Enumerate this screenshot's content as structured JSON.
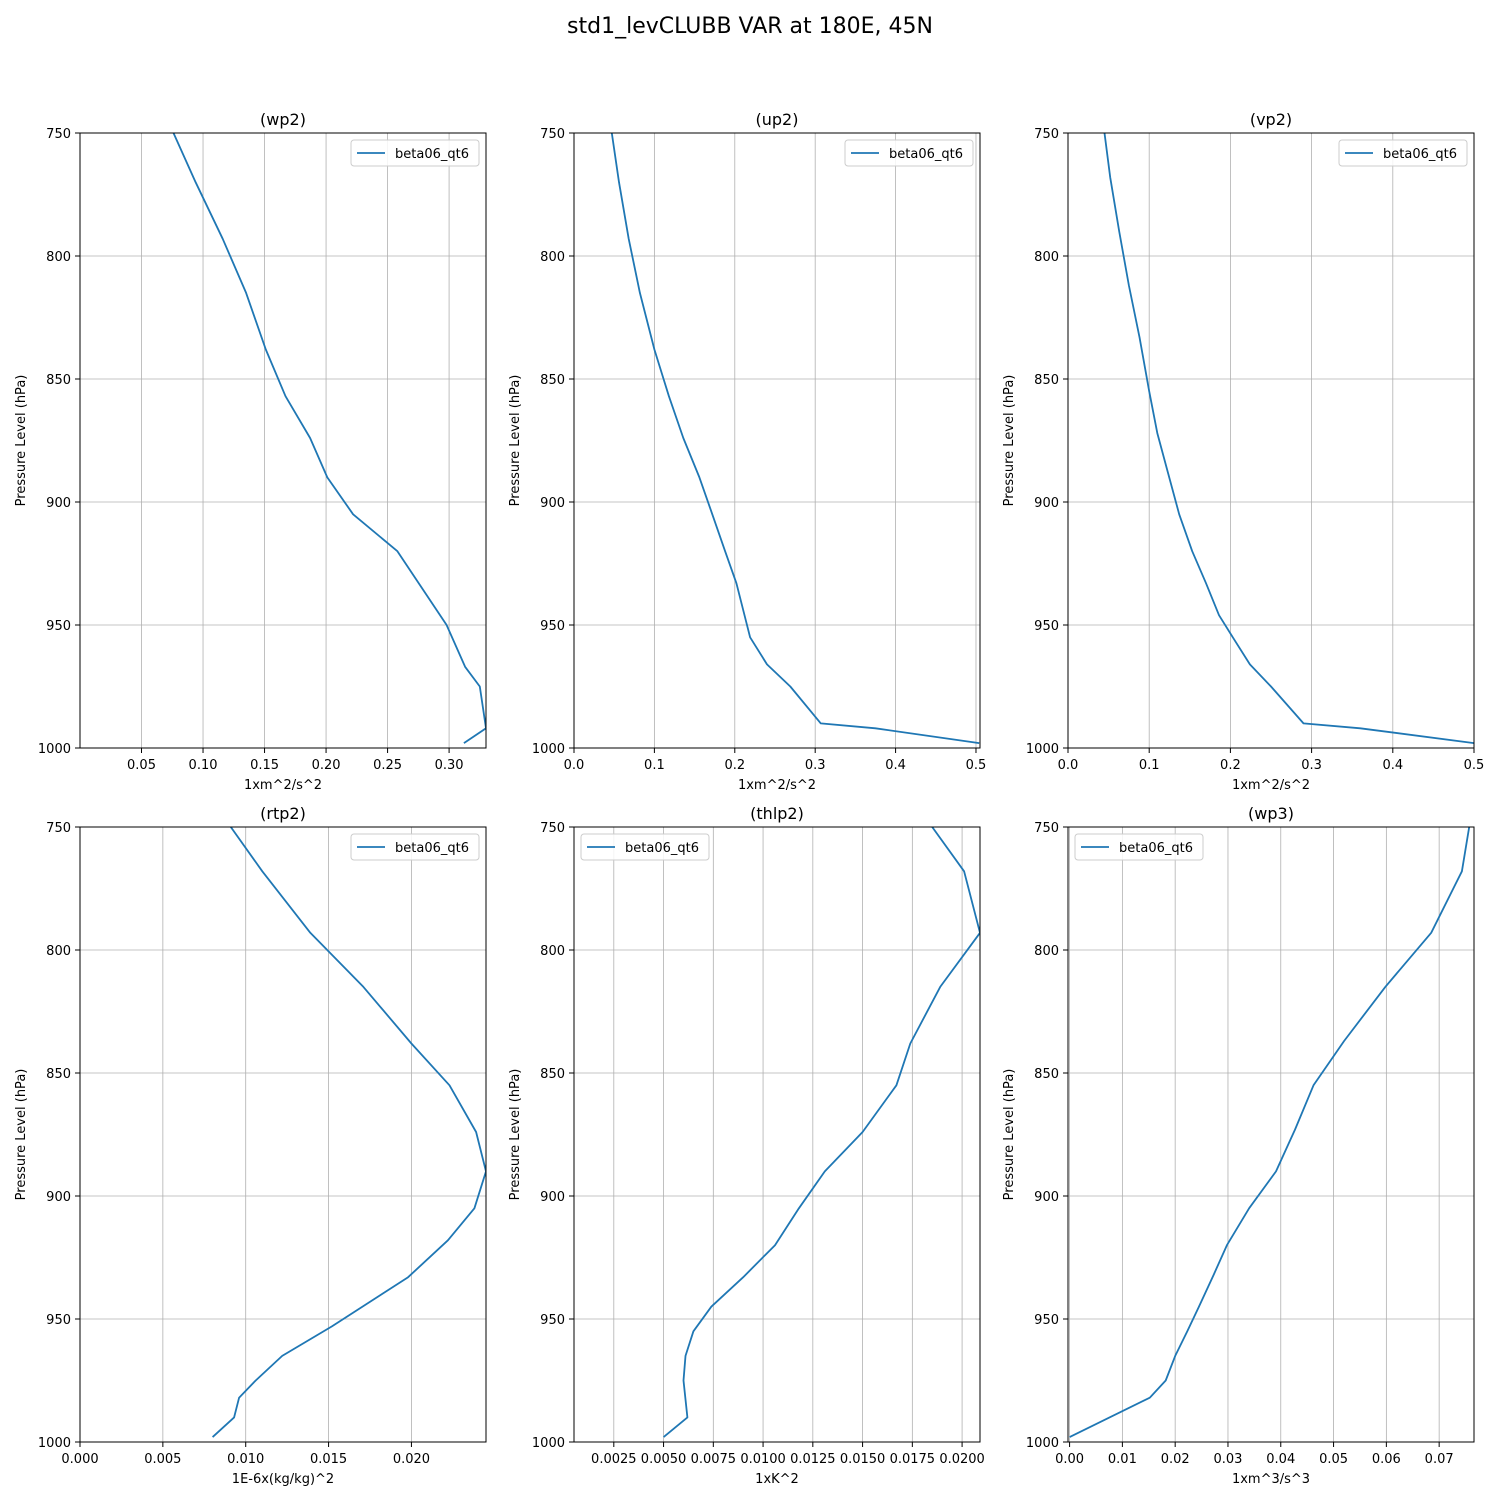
{
  "figure": {
    "title": "std1_levCLUBB VAR at 180E, 45N"
  },
  "chart_data": [
    {
      "type": "line",
      "title": "(wp2)",
      "xlabel": "1xm^2/s^2",
      "ylabel": "Pressure Level (hPa)",
      "xlim": [
        0.0,
        0.33
      ],
      "ylim": [
        1000,
        750
      ],
      "xticks": [
        0.05,
        0.1,
        0.15,
        0.2,
        0.25,
        0.3
      ],
      "xtick_labels": [
        "0.05",
        "0.10",
        "0.15",
        "0.20",
        "0.25",
        "0.30"
      ],
      "yticks": [
        750,
        800,
        850,
        900,
        950,
        1000
      ],
      "ytick_labels": [
        "750",
        "800",
        "850",
        "900",
        "950",
        "1000"
      ],
      "grid": true,
      "legend": "top-right",
      "series": [
        {
          "name": "beta06_qt6",
          "color": "#1f77b4",
          "x": [
            0.076,
            0.094,
            0.116,
            0.135,
            0.151,
            0.167,
            0.187,
            0.201,
            0.222,
            0.258,
            0.298,
            0.313,
            0.325,
            0.33,
            0.312
          ],
          "y": [
            750,
            770,
            793,
            815,
            838,
            857,
            874,
            890,
            905,
            920,
            950,
            967,
            975,
            992,
            998
          ]
        }
      ]
    },
    {
      "type": "line",
      "title": "(up2)",
      "xlabel": "1xm^2/s^2",
      "ylabel": "Pressure Level (hPa)",
      "xlim": [
        0.0,
        0.505
      ],
      "ylim": [
        1000,
        750
      ],
      "xticks": [
        0.0,
        0.1,
        0.2,
        0.3,
        0.4,
        0.5
      ],
      "xtick_labels": [
        "0.0",
        "0.1",
        "0.2",
        "0.3",
        "0.4",
        "0.5"
      ],
      "yticks": [
        750,
        800,
        850,
        900,
        950,
        1000
      ],
      "ytick_labels": [
        "750",
        "800",
        "850",
        "900",
        "950",
        "1000"
      ],
      "grid": true,
      "legend": "top-right",
      "series": [
        {
          "name": "beta06_qt6",
          "color": "#1f77b4",
          "x": [
            0.047,
            0.056,
            0.068,
            0.082,
            0.1,
            0.118,
            0.136,
            0.156,
            0.172,
            0.188,
            0.202,
            0.219,
            0.24,
            0.269,
            0.307,
            0.375,
            0.504
          ],
          "y": [
            750,
            770,
            793,
            815,
            838,
            857,
            874,
            890,
            905,
            920,
            933,
            955,
            966,
            975,
            990,
            992,
            998
          ]
        }
      ]
    },
    {
      "type": "line",
      "title": "(vp2)",
      "xlabel": "1xm^2/s^2",
      "ylabel": "Pressure Level (hPa)",
      "xlim": [
        0.0,
        0.5
      ],
      "ylim": [
        1000,
        750
      ],
      "xticks": [
        0.0,
        0.1,
        0.2,
        0.3,
        0.4,
        0.5
      ],
      "xtick_labels": [
        "0.0",
        "0.1",
        "0.2",
        "0.3",
        "0.4",
        "0.5"
      ],
      "yticks": [
        750,
        800,
        850,
        900,
        950,
        1000
      ],
      "ytick_labels": [
        "750",
        "800",
        "850",
        "900",
        "950",
        "1000"
      ],
      "grid": true,
      "legend": "top-right",
      "series": [
        {
          "name": "beta06_qt6",
          "color": "#1f77b4",
          "x": [
            0.045,
            0.052,
            0.063,
            0.075,
            0.088,
            0.1,
            0.11,
            0.123,
            0.137,
            0.153,
            0.17,
            0.186,
            0.203,
            0.224,
            0.25,
            0.29,
            0.36,
            0.5
          ],
          "y": [
            750,
            768,
            790,
            812,
            833,
            855,
            872,
            888,
            905,
            920,
            933,
            946,
            955,
            966,
            975,
            990,
            992,
            998
          ]
        }
      ]
    },
    {
      "type": "line",
      "title": "(rtp2)",
      "xlabel": "1E-6x(kg/kg)^2",
      "ylabel": "Pressure Level (hPa)",
      "xlim": [
        0.0,
        0.0245
      ],
      "ylim": [
        1000,
        750
      ],
      "xticks": [
        0.0,
        0.005,
        0.01,
        0.015,
        0.02
      ],
      "xtick_labels": [
        "0.000",
        "0.005",
        "0.010",
        "0.015",
        "0.020"
      ],
      "yticks": [
        750,
        800,
        850,
        900,
        950,
        1000
      ],
      "ytick_labels": [
        "750",
        "800",
        "850",
        "900",
        "950",
        "1000"
      ],
      "grid": true,
      "legend": "top-right",
      "series": [
        {
          "name": "beta06_qt6",
          "color": "#1f77b4",
          "x": [
            0.0091,
            0.011,
            0.0139,
            0.0171,
            0.02,
            0.0223,
            0.0239,
            0.0245,
            0.0238,
            0.0222,
            0.0198,
            0.0152,
            0.0122,
            0.0106,
            0.0096,
            0.0093,
            0.008
          ],
          "y": [
            750,
            768,
            793,
            815,
            838,
            855,
            874,
            890,
            905,
            918,
            933,
            953,
            965,
            975,
            982,
            990,
            998
          ]
        }
      ]
    },
    {
      "type": "line",
      "title": "(thlp2)",
      "xlabel": "1xK^2",
      "ylabel": "Pressure Level (hPa)",
      "xlim": [
        0.0005,
        0.0209
      ],
      "ylim": [
        1000,
        750
      ],
      "xticks": [
        0.0025,
        0.005,
        0.0075,
        0.01,
        0.0125,
        0.015,
        0.0175,
        0.02
      ],
      "xtick_labels": [
        "0.0025",
        "0.0050",
        "0.0075",
        "0.0100",
        "0.0125",
        "0.0150",
        "0.0175",
        "0.0200"
      ],
      "yticks": [
        750,
        800,
        850,
        900,
        950,
        1000
      ],
      "ytick_labels": [
        "750",
        "800",
        "850",
        "900",
        "950",
        "1000"
      ],
      "grid": true,
      "legend": "top-left",
      "series": [
        {
          "name": "beta06_qt6",
          "color": "#1f77b4",
          "x": [
            0.0185,
            0.0201,
            0.0209,
            0.0189,
            0.0174,
            0.0167,
            0.015,
            0.0131,
            0.0118,
            0.0106,
            0.009,
            0.0074,
            0.0065,
            0.0061,
            0.006,
            0.0062,
            0.005
          ],
          "y": [
            750,
            768,
            793,
            815,
            838,
            855,
            874,
            890,
            905,
            920,
            933,
            945,
            955,
            965,
            975,
            990,
            998
          ]
        }
      ]
    },
    {
      "type": "line",
      "title": "(wp3)",
      "xlabel": "1xm^3/s^3",
      "ylabel": "Pressure Level (hPa)",
      "xlim": [
        -0.0003,
        0.0766
      ],
      "ylim": [
        1000,
        750
      ],
      "xticks": [
        0.0,
        0.01,
        0.02,
        0.03,
        0.04,
        0.05,
        0.06,
        0.07
      ],
      "xtick_labels": [
        "0.00",
        "0.01",
        "0.02",
        "0.03",
        "0.04",
        "0.05",
        "0.06",
        "0.07"
      ],
      "yticks": [
        750,
        800,
        850,
        900,
        950,
        1000
      ],
      "ytick_labels": [
        "750",
        "800",
        "850",
        "900",
        "950",
        "1000"
      ],
      "grid": true,
      "legend": "top-left",
      "series": [
        {
          "name": "beta06_qt6",
          "color": "#1f77b4",
          "x": [
            0.0757,
            0.0743,
            0.0685,
            0.0598,
            0.052,
            0.0462,
            0.0427,
            0.0391,
            0.034,
            0.0298,
            0.0273,
            0.0245,
            0.0223,
            0.02,
            0.0182,
            0.0152,
            0.0
          ],
          "y": [
            750,
            768,
            793,
            815,
            837,
            855,
            873,
            890,
            905,
            920,
            932,
            945,
            955,
            965,
            975,
            982,
            998
          ]
        }
      ]
    }
  ]
}
